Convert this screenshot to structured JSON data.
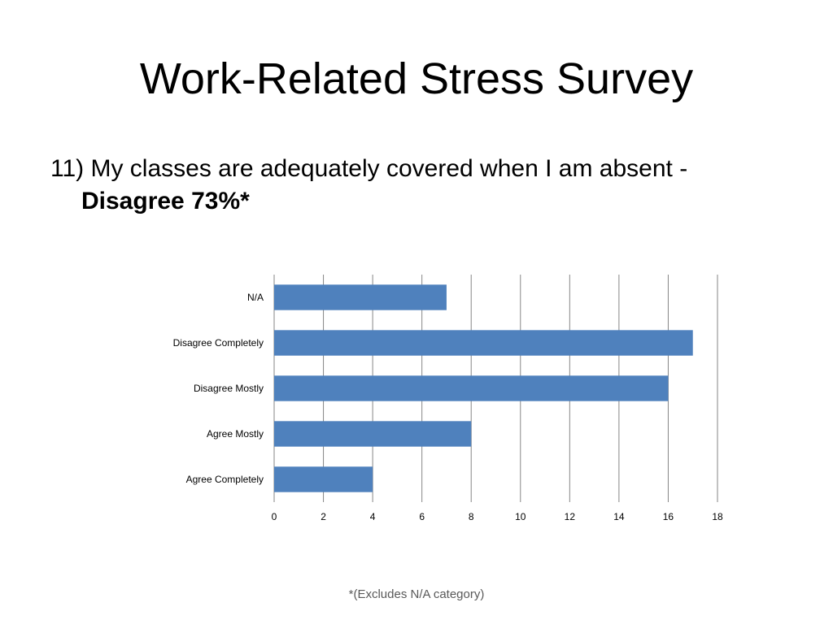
{
  "slide": {
    "title": "Work-Related Stress Survey",
    "question": "11) My classes are adequately covered when I am absent -",
    "answer": "Disagree 73%*",
    "footnote": "*(Excludes N/A category)"
  },
  "chart_data": {
    "type": "bar",
    "orientation": "horizontal",
    "categories": [
      "N/A",
      "Disagree Completely",
      "Disagree Mostly",
      "Agree Mostly",
      "Agree Completely"
    ],
    "values": [
      7,
      17,
      16,
      8,
      4
    ],
    "xlim": [
      0,
      18
    ],
    "x_ticks": [
      0,
      2,
      4,
      6,
      8,
      10,
      12,
      14,
      16,
      18
    ],
    "grid": "vertical",
    "legend": "none",
    "bar_color": "#4F81BD",
    "grid_color": "#868686"
  }
}
